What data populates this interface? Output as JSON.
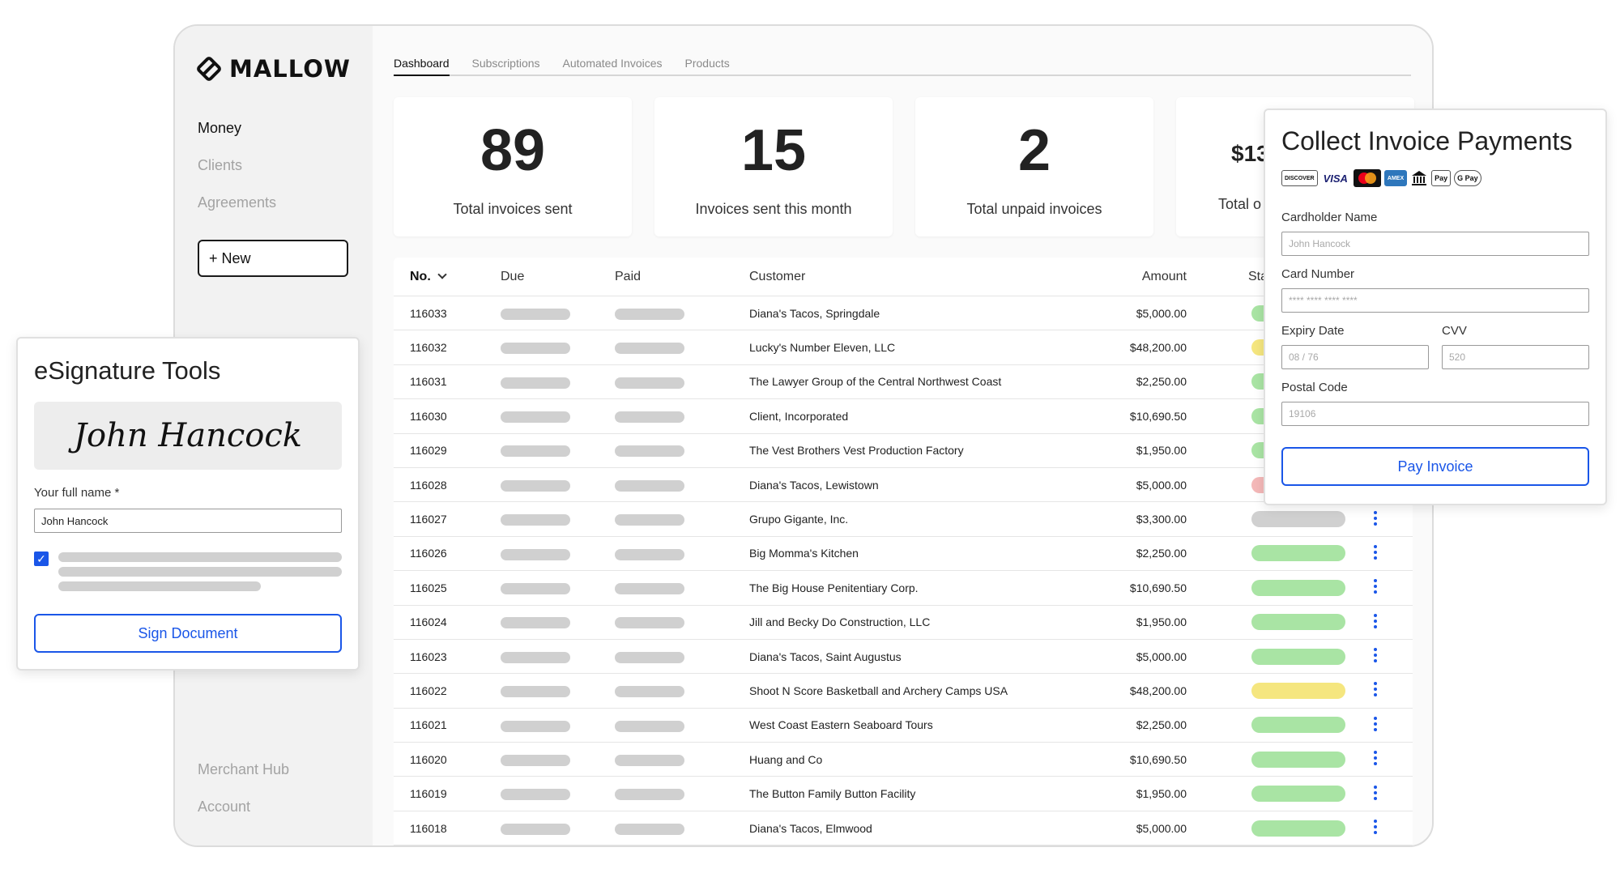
{
  "app": {
    "logo_text": "MALLOW"
  },
  "sidebar": {
    "items": [
      {
        "label": "Money",
        "active": true
      },
      {
        "label": "Clients",
        "active": false
      },
      {
        "label": "Agreements",
        "active": false
      }
    ],
    "new_button": "+ New",
    "bottom_items": [
      {
        "label": "Merchant Hub"
      },
      {
        "label": "Account"
      }
    ]
  },
  "tabs": [
    {
      "label": "Dashboard",
      "active": true
    },
    {
      "label": "Subscriptions",
      "active": false
    },
    {
      "label": "Automated Invoices",
      "active": false
    },
    {
      "label": "Products",
      "active": false
    }
  ],
  "stats": [
    {
      "value": "89",
      "label": "Total invoices sent"
    },
    {
      "value": "15",
      "label": "Invoices sent this month"
    },
    {
      "value": "2",
      "label": "Total unpaid invoices"
    },
    {
      "value": "$13",
      "label": "Total o"
    }
  ],
  "table": {
    "headers": {
      "no": "No.",
      "due": "Due",
      "paid": "Paid",
      "customer": "Customer",
      "amount": "Amount",
      "status": "Statu"
    },
    "rows": [
      {
        "no": "116033",
        "customer": "Diana's Tacos, Springdale",
        "amount": "$5,000.00",
        "status": "paid"
      },
      {
        "no": "116032",
        "customer": "Lucky's Number Eleven, LLC",
        "amount": "$48,200.00",
        "status": "pending"
      },
      {
        "no": "116031",
        "customer": "The Lawyer Group of the Central Northwest Coast",
        "amount": "$2,250.00",
        "status": "paid"
      },
      {
        "no": "116030",
        "customer": "Client, Incorporated",
        "amount": "$10,690.50",
        "status": "paid"
      },
      {
        "no": "116029",
        "customer": "The Vest Brothers Vest Production Factory",
        "amount": "$1,950.00",
        "status": "paid"
      },
      {
        "no": "116028",
        "customer": "Diana's Tacos, Lewistown",
        "amount": "$5,000.00",
        "status": "overdue"
      },
      {
        "no": "116027",
        "customer": "Grupo Gigante, Inc.",
        "amount": "$3,300.00",
        "status": "draft"
      },
      {
        "no": "116026",
        "customer": "Big Momma's Kitchen",
        "amount": "$2,250.00",
        "status": "paid"
      },
      {
        "no": "116025",
        "customer": "The Big House Penitentiary Corp.",
        "amount": "$10,690.50",
        "status": "paid"
      },
      {
        "no": "116024",
        "customer": "Jill and Becky Do Construction, LLC",
        "amount": "$1,950.00",
        "status": "paid"
      },
      {
        "no": "116023",
        "customer": "Diana's Tacos, Saint Augustus",
        "amount": "$5,000.00",
        "status": "paid"
      },
      {
        "no": "116022",
        "customer": "Shoot N Score Basketball and Archery Camps USA",
        "amount": "$48,200.00",
        "status": "pending"
      },
      {
        "no": "116021",
        "customer": "West Coast Eastern Seaboard Tours",
        "amount": "$2,250.00",
        "status": "paid"
      },
      {
        "no": "116020",
        "customer": "Huang and Co",
        "amount": "$10,690.50",
        "status": "paid"
      },
      {
        "no": "116019",
        "customer": "The Button Family Button Facility",
        "amount": "$1,950.00",
        "status": "paid"
      },
      {
        "no": "116018",
        "customer": "Diana's Tacos, Elmwood",
        "amount": "$5,000.00",
        "status": "paid"
      }
    ]
  },
  "status_colors": {
    "paid": "#a9e4a4",
    "pending": "#f5e67f",
    "overdue": "#f4b8b8",
    "draft": "#d0d0d0"
  },
  "accent_color": "#1a56e8",
  "esignature": {
    "title": "eSignature Tools",
    "signature": "John Hancock",
    "name_label": "Your full name *",
    "name_value": "John Hancock",
    "checkbox_checked": true,
    "button": "Sign Document"
  },
  "payment": {
    "title": "Collect Invoice Payments",
    "card_brands": [
      "DISCOVER",
      "VISA",
      "mastercard-icon",
      "AMEX",
      "bank-icon",
      "Pay",
      "G Pay"
    ],
    "cardholder_label": "Cardholder Name",
    "cardholder_placeholder": "John Hancock",
    "card_number_label": "Card Number",
    "card_number_placeholder": "**** **** **** ****",
    "expiry_label": "Expiry Date",
    "expiry_placeholder": "08 / 76",
    "cvv_label": "CVV",
    "cvv_placeholder": "520",
    "postal_label": "Postal Code",
    "postal_placeholder": "19106",
    "button": "Pay Invoice"
  }
}
